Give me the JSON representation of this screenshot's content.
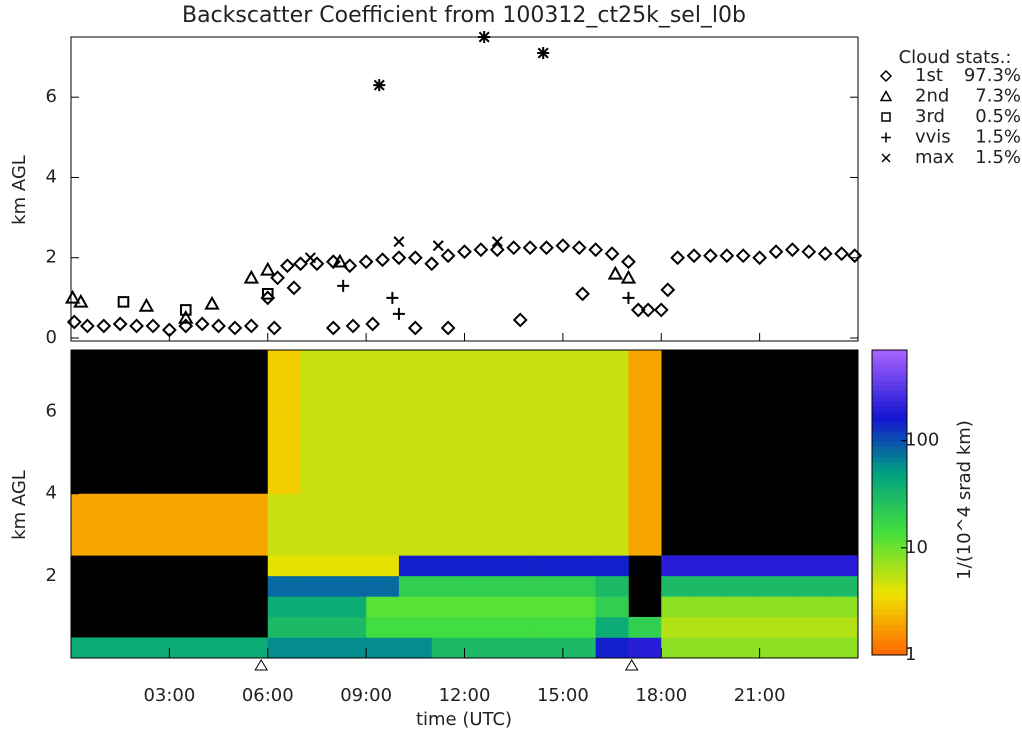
{
  "chart_data": [
    {
      "type": "scatter",
      "title": "Backscatter Coefficient from 100312_ct25k_sel_l0b",
      "ylabel": "km AGL",
      "legend_title": "Cloud stats.:",
      "xlim": [
        0,
        24
      ],
      "ylim": [
        0,
        7.5
      ],
      "yticks": [
        0,
        2,
        4,
        6
      ],
      "xticks": [
        3,
        6,
        9,
        12,
        15,
        18,
        21
      ],
      "series": [
        {
          "name": "1st",
          "share": "97.3%",
          "marker": "diamond",
          "color": "#000000",
          "x": [
            0.1,
            0.5,
            1,
            1.5,
            2,
            2.5,
            3,
            3.5,
            4,
            4.5,
            5,
            5.5,
            6,
            6.3,
            6.6,
            7,
            7.5,
            8,
            8.5,
            9,
            9.5,
            10,
            10.5,
            11,
            11.5,
            12,
            12.5,
            13,
            13.5,
            14,
            14.5,
            15,
            15.5,
            16,
            16.5,
            17,
            17.3,
            17.6,
            18,
            18.2,
            18.5,
            19,
            19.5,
            20,
            20.5,
            21,
            21.5,
            22,
            22.5,
            23,
            23.5,
            23.9,
            6.2,
            8,
            8.6,
            9.2,
            10.5,
            11.5,
            13.7,
            15.6,
            6.8
          ],
          "y": [
            0.4,
            0.3,
            0.3,
            0.35,
            0.3,
            0.3,
            0.2,
            0.3,
            0.35,
            0.3,
            0.25,
            0.3,
            1.0,
            1.5,
            1.8,
            1.85,
            1.85,
            1.9,
            1.8,
            1.9,
            1.95,
            2.0,
            2.0,
            1.85,
            2.05,
            2.15,
            2.2,
            2.2,
            2.25,
            2.25,
            2.25,
            2.3,
            2.25,
            2.2,
            2.1,
            1.9,
            0.7,
            0.7,
            0.7,
            1.2,
            2.0,
            2.05,
            2.05,
            2.05,
            2.05,
            2.0,
            2.15,
            2.2,
            2.15,
            2.1,
            2.1,
            2.05,
            0.25,
            0.25,
            0.3,
            0.35,
            0.25,
            0.25,
            0.45,
            1.1,
            1.25
          ]
        },
        {
          "name": "2nd",
          "share": "7.3%",
          "marker": "triangle",
          "color": "#000000",
          "x": [
            0.05,
            0.3,
            2.3,
            3.5,
            4.3,
            5.5,
            6,
            8.2,
            16.6,
            17
          ],
          "y": [
            1.0,
            0.9,
            0.8,
            0.5,
            0.85,
            1.5,
            1.7,
            1.9,
            1.6,
            1.5
          ]
        },
        {
          "name": "3rd",
          "share": "0.5%",
          "marker": "square",
          "color": "#000000",
          "x": [
            1.6,
            3.5,
            6
          ],
          "y": [
            0.9,
            0.7,
            1.1
          ]
        },
        {
          "name": "vvis",
          "share": "1.5%",
          "marker": "plus",
          "color": "#000000",
          "x": [
            8.3,
            9.8,
            10,
            17,
            9.4,
            12.6,
            14.4
          ],
          "y": [
            1.3,
            1.0,
            0.6,
            1.0,
            6.3,
            7.5,
            7.1
          ]
        },
        {
          "name": "max",
          "share": "1.5%",
          "marker": "cross",
          "color": "#000000",
          "x": [
            7.3,
            10,
            11.2,
            13,
            9.4,
            12.6,
            14.4
          ],
          "y": [
            2.0,
            2.4,
            2.3,
            2.4,
            6.3,
            7.5,
            7.1
          ]
        }
      ]
    },
    {
      "type": "heatmap",
      "xlabel": "time (UTC)",
      "ylabel": "km AGL",
      "colorbar_label": "1/(10^4 srad km)",
      "xlim": [
        0,
        24
      ],
      "ylim": [
        0,
        7.5
      ],
      "yticks": [
        2,
        4,
        6
      ],
      "xticks": [
        {
          "value": 3,
          "label": "03:00"
        },
        {
          "value": 6,
          "label": "06:00"
        },
        {
          "value": 9,
          "label": "09:00"
        },
        {
          "value": 12,
          "label": "12:00"
        },
        {
          "value": 15,
          "label": "15:00"
        },
        {
          "value": 18,
          "label": "18:00"
        },
        {
          "value": 21,
          "label": "21:00"
        }
      ],
      "x_edges": [
        0,
        1,
        2,
        3,
        4,
        5,
        6,
        7,
        8,
        9,
        10,
        11,
        12,
        13,
        14,
        15,
        16,
        17,
        18,
        19,
        20,
        21,
        22,
        23,
        24
      ],
      "y_edges": [
        0,
        0.5,
        1,
        1.5,
        2,
        2.5,
        4,
        6,
        7.5
      ],
      "clim": [
        1,
        700
      ],
      "log_color": true,
      "colorbar_ticks": [
        1,
        10,
        100
      ],
      "markers_x": [
        5.8,
        17.1
      ],
      "z": [
        [
          40,
          40,
          40,
          40,
          40,
          40,
          60,
          60,
          60,
          60,
          60,
          30,
          30,
          30,
          30,
          30,
          150,
          200,
          8,
          8,
          8,
          8,
          8,
          8
        ],
        [
          null,
          null,
          null,
          null,
          null,
          null,
          30,
          30,
          30,
          15,
          15,
          15,
          15,
          15,
          15,
          15,
          40,
          20,
          6,
          6,
          6,
          6,
          6,
          6
        ],
        [
          null,
          null,
          null,
          null,
          null,
          null,
          40,
          40,
          40,
          12,
          12,
          12,
          12,
          12,
          12,
          12,
          20,
          null,
          8,
          8,
          8,
          8,
          8,
          8
        ],
        [
          null,
          null,
          null,
          null,
          null,
          null,
          80,
          80,
          80,
          80,
          20,
          20,
          20,
          20,
          20,
          20,
          30,
          null,
          30,
          30,
          30,
          30,
          30,
          30
        ],
        [
          null,
          null,
          null,
          null,
          null,
          null,
          4,
          4,
          4,
          4,
          150,
          150,
          150,
          150,
          150,
          150,
          150,
          null,
          200,
          200,
          200,
          200,
          200,
          200
        ],
        [
          2,
          2,
          2,
          2,
          2,
          2,
          5,
          5,
          5,
          5,
          5,
          5,
          5,
          5,
          5,
          5,
          5,
          2,
          null,
          null,
          null,
          null,
          null,
          null
        ],
        [
          null,
          null,
          null,
          null,
          null,
          null,
          3,
          5,
          5,
          5,
          5,
          5,
          5,
          5,
          5,
          5,
          5,
          2,
          null,
          null,
          null,
          null,
          null,
          null
        ],
        [
          null,
          null,
          null,
          null,
          null,
          null,
          3,
          5,
          5,
          5,
          5,
          5,
          5,
          5,
          5,
          5,
          5,
          2,
          null,
          null,
          null,
          null,
          null,
          null
        ]
      ]
    }
  ]
}
